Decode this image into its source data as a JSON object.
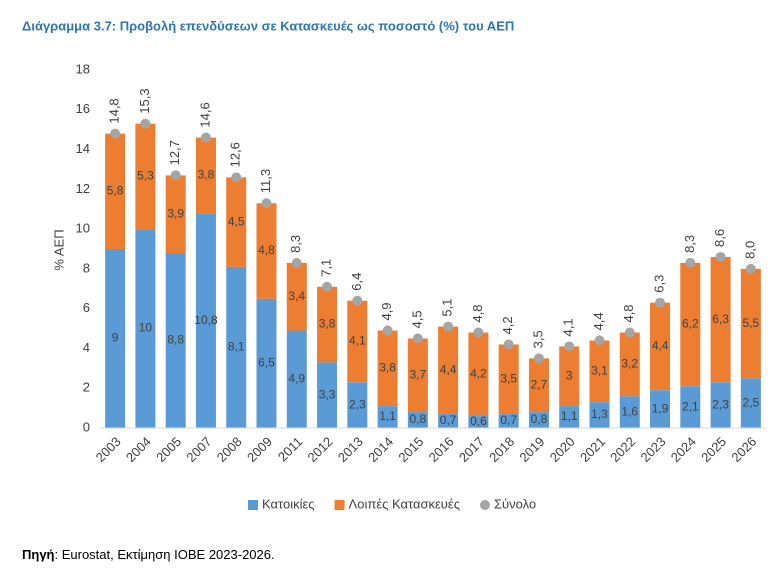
{
  "chart_data": {
    "type": "bar",
    "stacked": true,
    "title": "Διάγραμμα 3.7: Προβολή επενδύσεων σε Κατασκευές ως ποσοστό (%) του ΑΕΠ",
    "y_label": "% ΑΕΠ",
    "categories": [
      "2003",
      "2004",
      "2005",
      "2007",
      "2008",
      "2009",
      "2011",
      "2012",
      "2013",
      "2014",
      "2015",
      "2016",
      "2017",
      "2018",
      "2019",
      "2020",
      "2021",
      "2022",
      "2023",
      "2024",
      "2025",
      "2026"
    ],
    "series": [
      {
        "name": "Κατοικίες",
        "color": "#5b9bd5",
        "values": [
          9,
          10,
          8.8,
          10.8,
          8.1,
          6.5,
          4.9,
          3.3,
          2.3,
          1.1,
          0.8,
          0.7,
          0.6,
          0.7,
          0.8,
          1.1,
          1.3,
          1.6,
          1.9,
          2.1,
          2.3,
          2.5
        ],
        "value_labels": [
          "9",
          "10",
          "8,8",
          "10,8",
          "8,1",
          "6,5",
          "4,9",
          "3,3",
          "2,3",
          "1,1",
          "0,8",
          "0,7",
          "0,6",
          "0,7",
          "0,8",
          "1,1",
          "1,3",
          "1,6",
          "1,9",
          "2,1",
          "2,3",
          "2,5"
        ]
      },
      {
        "name": "Λοιπές Κατασκευές",
        "color": "#ed7d31",
        "values": [
          5.8,
          5.3,
          3.9,
          3.8,
          4.5,
          4.8,
          3.4,
          3.8,
          4.1,
          3.8,
          3.7,
          4.4,
          4.2,
          3.5,
          2.7,
          3,
          3.1,
          3.2,
          4.4,
          6.2,
          6.3,
          5.5
        ],
        "value_labels": [
          "5,8",
          "5,3",
          "3,9",
          "3,8",
          "4,5",
          "4,8",
          "3,4",
          "3,8",
          "4,1",
          "3,8",
          "3,7",
          "4,4",
          "4,2",
          "3,5",
          "2,7",
          "3",
          "3,1",
          "3,2",
          "4,4",
          "6,2",
          "6,3",
          "5,5"
        ]
      },
      {
        "name": "Σύνολο",
        "color": "#a5a5a5",
        "type": "point",
        "values": [
          14.8,
          15.3,
          12.7,
          14.6,
          12.6,
          11.3,
          8.3,
          7.1,
          6.4,
          4.9,
          4.5,
          5.1,
          4.8,
          4.2,
          3.5,
          4.1,
          4.4,
          4.8,
          6.3,
          8.3,
          8.6,
          8.0
        ],
        "value_labels": [
          "14,8",
          "15,3",
          "12,7",
          "14,6",
          "12,6",
          "11,3",
          "8,3",
          "7,1",
          "6,4",
          "4,9",
          "4,5",
          "5,1",
          "4,8",
          "4,2",
          "3,5",
          "4,1",
          "4,4",
          "4,8",
          "6,3",
          "8,3",
          "8,6",
          "8,0"
        ]
      }
    ],
    "ylim": [
      0,
      18
    ],
    "yticks": [
      0,
      2,
      4,
      6,
      8,
      10,
      12,
      14,
      16,
      18
    ],
    "grid": false
  },
  "source_label": "Πηγή",
  "source_text": ": Eurostat, Εκτίμηση ΙΟΒΕ 2023-2026."
}
